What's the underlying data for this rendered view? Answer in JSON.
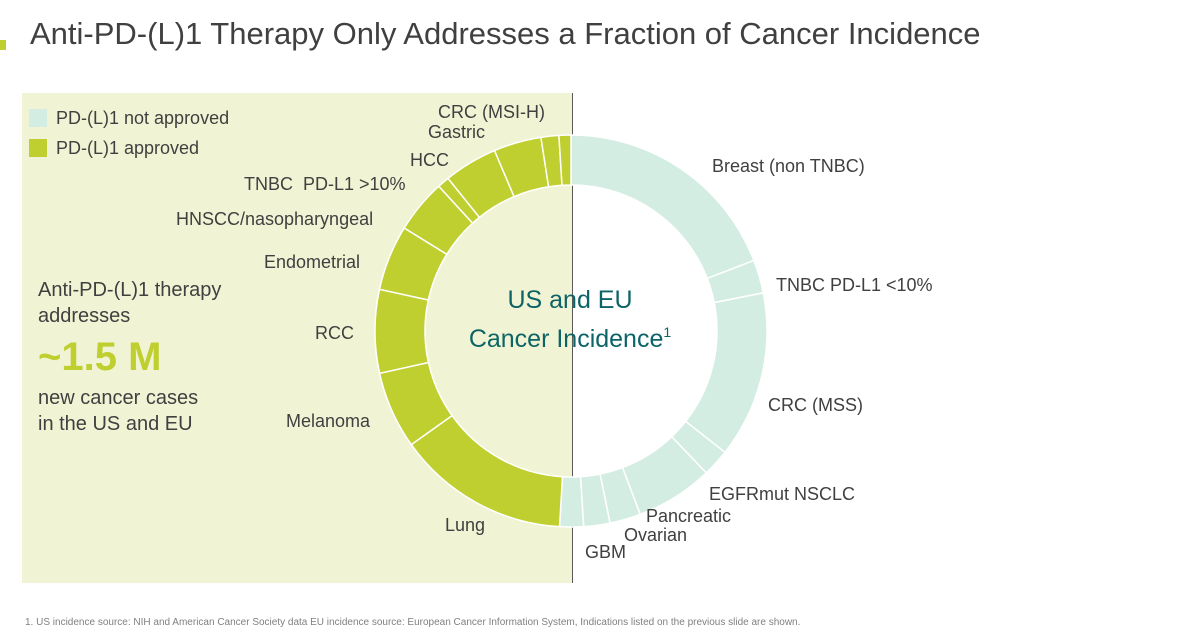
{
  "header": {
    "title": "Anti-PD-(L)1 Therapy Only Addresses a Fraction of Cancer Incidence"
  },
  "legend": [
    {
      "label": "PD-(L)1 not approved",
      "color": "#d3ede3"
    },
    {
      "label": "PD-(L)1 approved",
      "color": "#bfcf2f"
    }
  ],
  "callout": {
    "line1": "Anti-PD-(L)1 therapy",
    "line2": "addresses",
    "value": "~1.5 M",
    "line3": "new cancer cases",
    "line4": "in the US and EU"
  },
  "center": {
    "line1": "US and EU",
    "line2": "Cancer Incidence",
    "sup": "1"
  },
  "footnote": "1. US incidence source: NIH and American Cancer Society data EU incidence source: European Cancer Information System, Indications listed on the previous slide are shown.",
  "chart_data": {
    "type": "pie",
    "style": "donut",
    "slices": [
      {
        "label": "Breast (non TNBC)",
        "value": 19.5,
        "approved": false
      },
      {
        "label": "TNBC PD-L1 <10%",
        "value": 2.8,
        "approved": false
      },
      {
        "label": "CRC (MSS)",
        "value": 14.0,
        "approved": false
      },
      {
        "label": "",
        "value": 2.3,
        "approved": false
      },
      {
        "label": "EGFRmut NSCLC",
        "value": 6.5,
        "approved": false
      },
      {
        "label": "Pancreatic",
        "value": 2.6,
        "approved": false
      },
      {
        "label": "Ovarian",
        "value": 2.2,
        "approved": false
      },
      {
        "label": "GBM",
        "value": 2.0,
        "approved": false
      },
      {
        "label": "Lung",
        "value": 14.5,
        "approved": true
      },
      {
        "label": "Melanoma",
        "value": 6.5,
        "approved": true
      },
      {
        "label": "RCC",
        "value": 7.0,
        "approved": true
      },
      {
        "label": "Endometrial",
        "value": 5.5,
        "approved": true
      },
      {
        "label": "HNSCC/nasopharyngeal",
        "value": 4.5,
        "approved": true
      },
      {
        "label": "TNBC PD-L1 >10%",
        "value": 1.0,
        "approved": true
      },
      {
        "label": "HCC",
        "value": 4.5,
        "approved": true
      },
      {
        "label": "Gastric",
        "value": 4.0,
        "approved": true
      },
      {
        "label": "",
        "value": 1.5,
        "approved": true
      },
      {
        "label": "CRC (MSI-H)",
        "value": 1.0,
        "approved": true
      }
    ],
    "labels": [
      {
        "text": "Breast (non TNBC)",
        "side": "right"
      },
      {
        "text": "TNBC PD-L1 <10%",
        "side": "right"
      },
      {
        "text": "CRC (MSS)",
        "side": "right"
      },
      {
        "text": "EGFRmut NSCLC",
        "side": "right"
      },
      {
        "text": "Pancreatic",
        "side": "bottom"
      },
      {
        "text": "Ovarian",
        "side": "bottom"
      },
      {
        "text": "GBM",
        "side": "bottom"
      },
      {
        "text": "Lung",
        "side": "left"
      },
      {
        "text": "Melanoma",
        "side": "left"
      },
      {
        "text": "RCC",
        "side": "left"
      },
      {
        "text": "Endometrial",
        "side": "left"
      },
      {
        "text": "HNSCC/nasopharyngeal",
        "side": "left"
      },
      {
        "text": "TNBC  PD-L1 >10%",
        "side": "left"
      },
      {
        "text": "HCC",
        "side": "left"
      },
      {
        "text": "Gastric",
        "side": "top"
      },
      {
        "text": "CRC (MSI-H)",
        "side": "top"
      }
    ],
    "colors": {
      "not_approved": "#d3ede3",
      "approved": "#bfcf2f"
    }
  }
}
